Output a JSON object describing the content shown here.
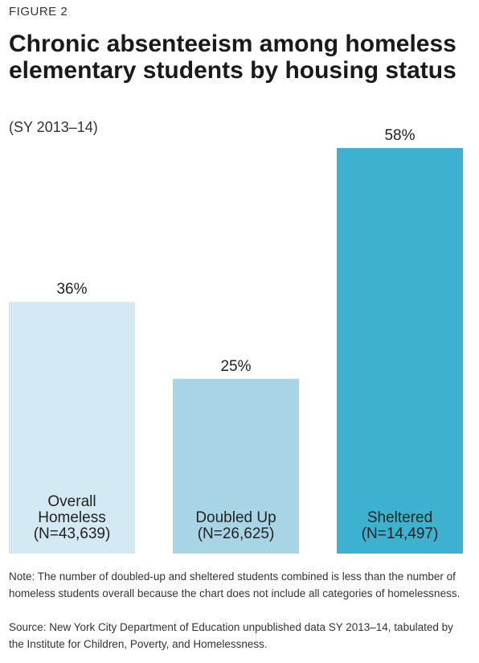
{
  "figure_label": "FIGURE 2",
  "title": "Chronic absenteeism among homeless elementary students by housing status",
  "subtitle": "(SY 2013–14)",
  "note": "Note: The number of doubled-up and sheltered students combined is less than the number of homeless students overall because the chart does not include all categories of homelessness.",
  "source": "Source: New York City Department of Education unpublished data SY 2013–14, tabulated by the Institute for Children, Poverty, and Homelessness.",
  "chart_data": {
    "type": "bar",
    "categories": [
      "Overall Homeless",
      "Doubled Up",
      "Sheltered"
    ],
    "category_label_lines": [
      [
        "Overall",
        "Homeless",
        "(N=43,639)"
      ],
      [
        "Doubled Up",
        "(N=26,625)"
      ],
      [
        "Sheltered",
        "(N=14,497)"
      ]
    ],
    "sample_sizes": [
      "N=43,639",
      "N=26,625",
      "N=14,497"
    ],
    "values": [
      36,
      25,
      58
    ],
    "value_labels": [
      "36%",
      "25%",
      "58%"
    ],
    "unit": "%",
    "colors": [
      "#d3e9f4",
      "#a8d5e6",
      "#3cb1d0"
    ],
    "label_colors": [
      "#222222",
      "#222222",
      "#ffffff"
    ],
    "ylim": [
      0,
      58
    ],
    "grid": false,
    "legend": "none"
  }
}
